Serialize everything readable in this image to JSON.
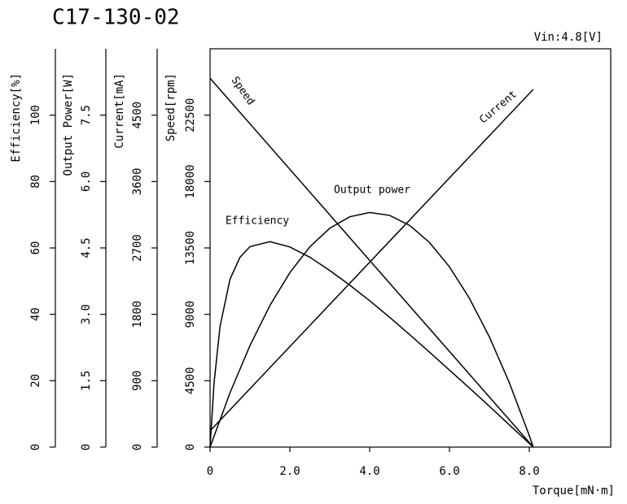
{
  "chart_data": {
    "type": "line",
    "title": "C17-130-02",
    "subtitle": "Vin:4.8[V]",
    "x_label": "Torque[mN·m]",
    "xlim": [
      0,
      10
    ],
    "xticks": [
      0,
      {
        "value": 2,
        "label": "2.0"
      },
      {
        "value": 4,
        "label": "4.0"
      },
      {
        "value": 6,
        "label": "6.0"
      },
      {
        "value": 8,
        "label": "8.0"
      }
    ],
    "y_axes": [
      {
        "label": "Efficiency[%]",
        "ylim": [
          0,
          120
        ],
        "yticks": [
          0,
          20,
          40,
          60,
          80,
          100
        ]
      },
      {
        "label": "Output Power[W]",
        "ylim": [
          0,
          9
        ],
        "yticks": [
          0,
          1.5,
          {
            "value": 3,
            "label": "3.0"
          },
          4.5,
          {
            "value": 6,
            "label": "6.0"
          },
          7.5
        ]
      },
      {
        "label": "Current[mA]",
        "ylim": [
          0,
          5400
        ],
        "yticks": [
          0,
          900,
          1800,
          2700,
          3600,
          4500
        ]
      },
      {
        "label": "Speed[rpm]",
        "ylim": [
          0,
          27000
        ],
        "yticks": [
          0,
          4500,
          9000,
          13500,
          18000,
          22500
        ]
      }
    ],
    "color": "#000000",
    "series": [
      {
        "name": "Speed",
        "axis": 3,
        "x": [
          0,
          8.1
        ],
        "values": [
          25000,
          0
        ]
      },
      {
        "name": "Current",
        "axis": 2,
        "x": [
          0,
          8.1
        ],
        "values": [
          220,
          4850
        ]
      },
      {
        "name": "Output power",
        "axis": 1,
        "x": [
          0,
          0.5,
          1,
          1.5,
          2,
          2.5,
          3,
          3.5,
          4,
          4.5,
          5,
          5.5,
          6,
          6.5,
          7,
          7.5,
          8,
          8.1
        ],
        "values": [
          0,
          1.228,
          2.295,
          3.2,
          3.943,
          4.525,
          4.945,
          5.204,
          5.3,
          5.236,
          5.01,
          4.622,
          4.072,
          3.361,
          2.489,
          1.454,
          0.259,
          0
        ]
      },
      {
        "name": "Efficiency",
        "axis": 0,
        "x": [
          0,
          0.1,
          0.25,
          0.5,
          0.75,
          1,
          1.5,
          2,
          2.5,
          3,
          3.5,
          4,
          4.5,
          5,
          5.5,
          6,
          6.5,
          7,
          7.5,
          8,
          8.1
        ],
        "values": [
          0,
          19.4,
          36.4,
          50.6,
          57.2,
          60.4,
          61.9,
          60.3,
          57.2,
          53.2,
          48.8,
          44.1,
          39.1,
          33.9,
          28.6,
          23.2,
          17.8,
          12.3,
          6.7,
          1.1,
          0
        ]
      }
    ]
  }
}
